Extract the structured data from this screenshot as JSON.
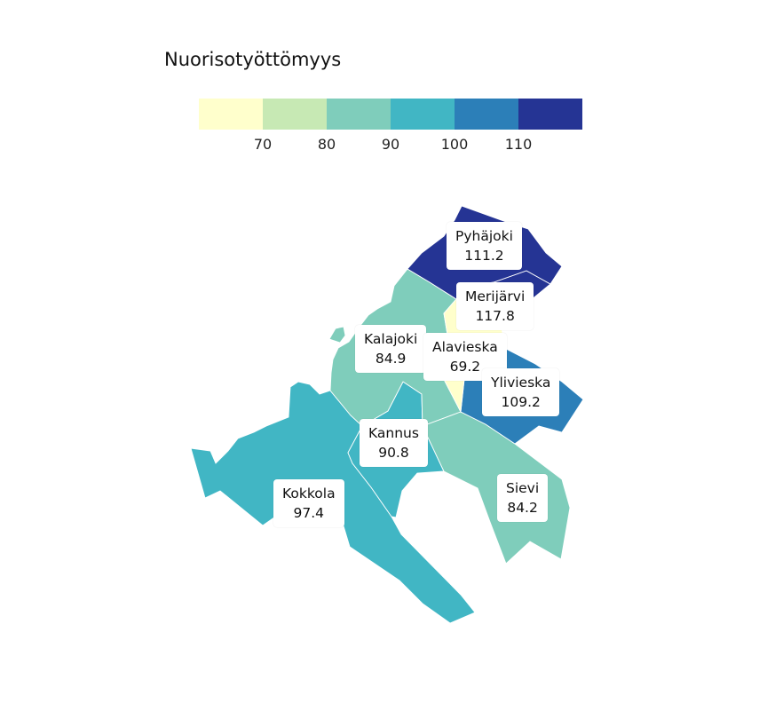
{
  "legend": {
    "title": "Nuorisotyöttömyys",
    "colors": [
      "#ffffcc",
      "#c7e9b4",
      "#7fcdbb",
      "#41b6c4",
      "#2c7fb8",
      "#253494"
    ],
    "ticks": [
      "70",
      "80",
      "90",
      "100",
      "110"
    ]
  },
  "regions": [
    {
      "name": "Pyhäjoki",
      "value": "111.2",
      "color": "#253494"
    },
    {
      "name": "Merijärvi",
      "value": "117.8",
      "color": "#253494"
    },
    {
      "name": "Kalajoki",
      "value": "84.9",
      "color": "#7fcdbb"
    },
    {
      "name": "Alavieska",
      "value": "69.2",
      "color": "#ffffcc"
    },
    {
      "name": "Ylivieska",
      "value": "109.2",
      "color": "#2c7fb8"
    },
    {
      "name": "Kannus",
      "value": "90.8",
      "color": "#41b6c4"
    },
    {
      "name": "Sievi",
      "value": "84.2",
      "color": "#7fcdbb"
    },
    {
      "name": "Kokkola",
      "value": "97.4",
      "color": "#41b6c4"
    }
  ]
}
